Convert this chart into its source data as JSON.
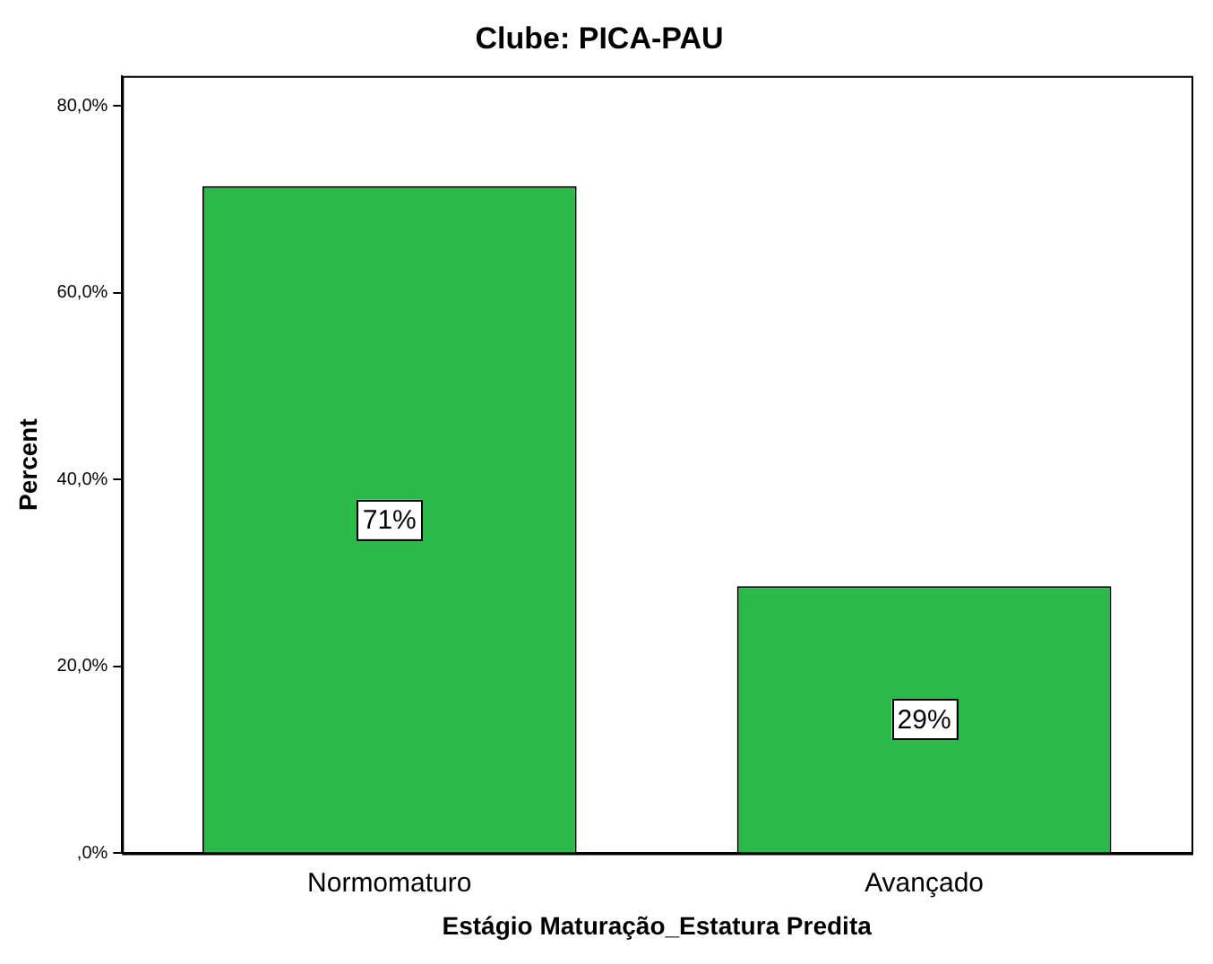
{
  "chart_data": {
    "type": "bar",
    "title": "Clube: PICA-PAU",
    "xlabel": "Estágio Maturação_Estatura Predita",
    "ylabel": "Percent",
    "categories": [
      "Normomaturo",
      "Avançado"
    ],
    "series": [
      {
        "color": "#2db84a",
        "values": [
          71.4,
          28.6
        ],
        "value_labels": [
          "71%",
          "29%"
        ]
      }
    ],
    "ylim": [
      0,
      83.2
    ],
    "yticks": [
      {
        "value": 0,
        "label": ",0%"
      },
      {
        "value": 20,
        "label": "20,0%"
      },
      {
        "value": 40,
        "label": "40,0%"
      },
      {
        "value": 60,
        "label": "60,0%"
      },
      {
        "value": 80,
        "label": "80,0%"
      }
    ],
    "grid": false,
    "legend": false
  }
}
